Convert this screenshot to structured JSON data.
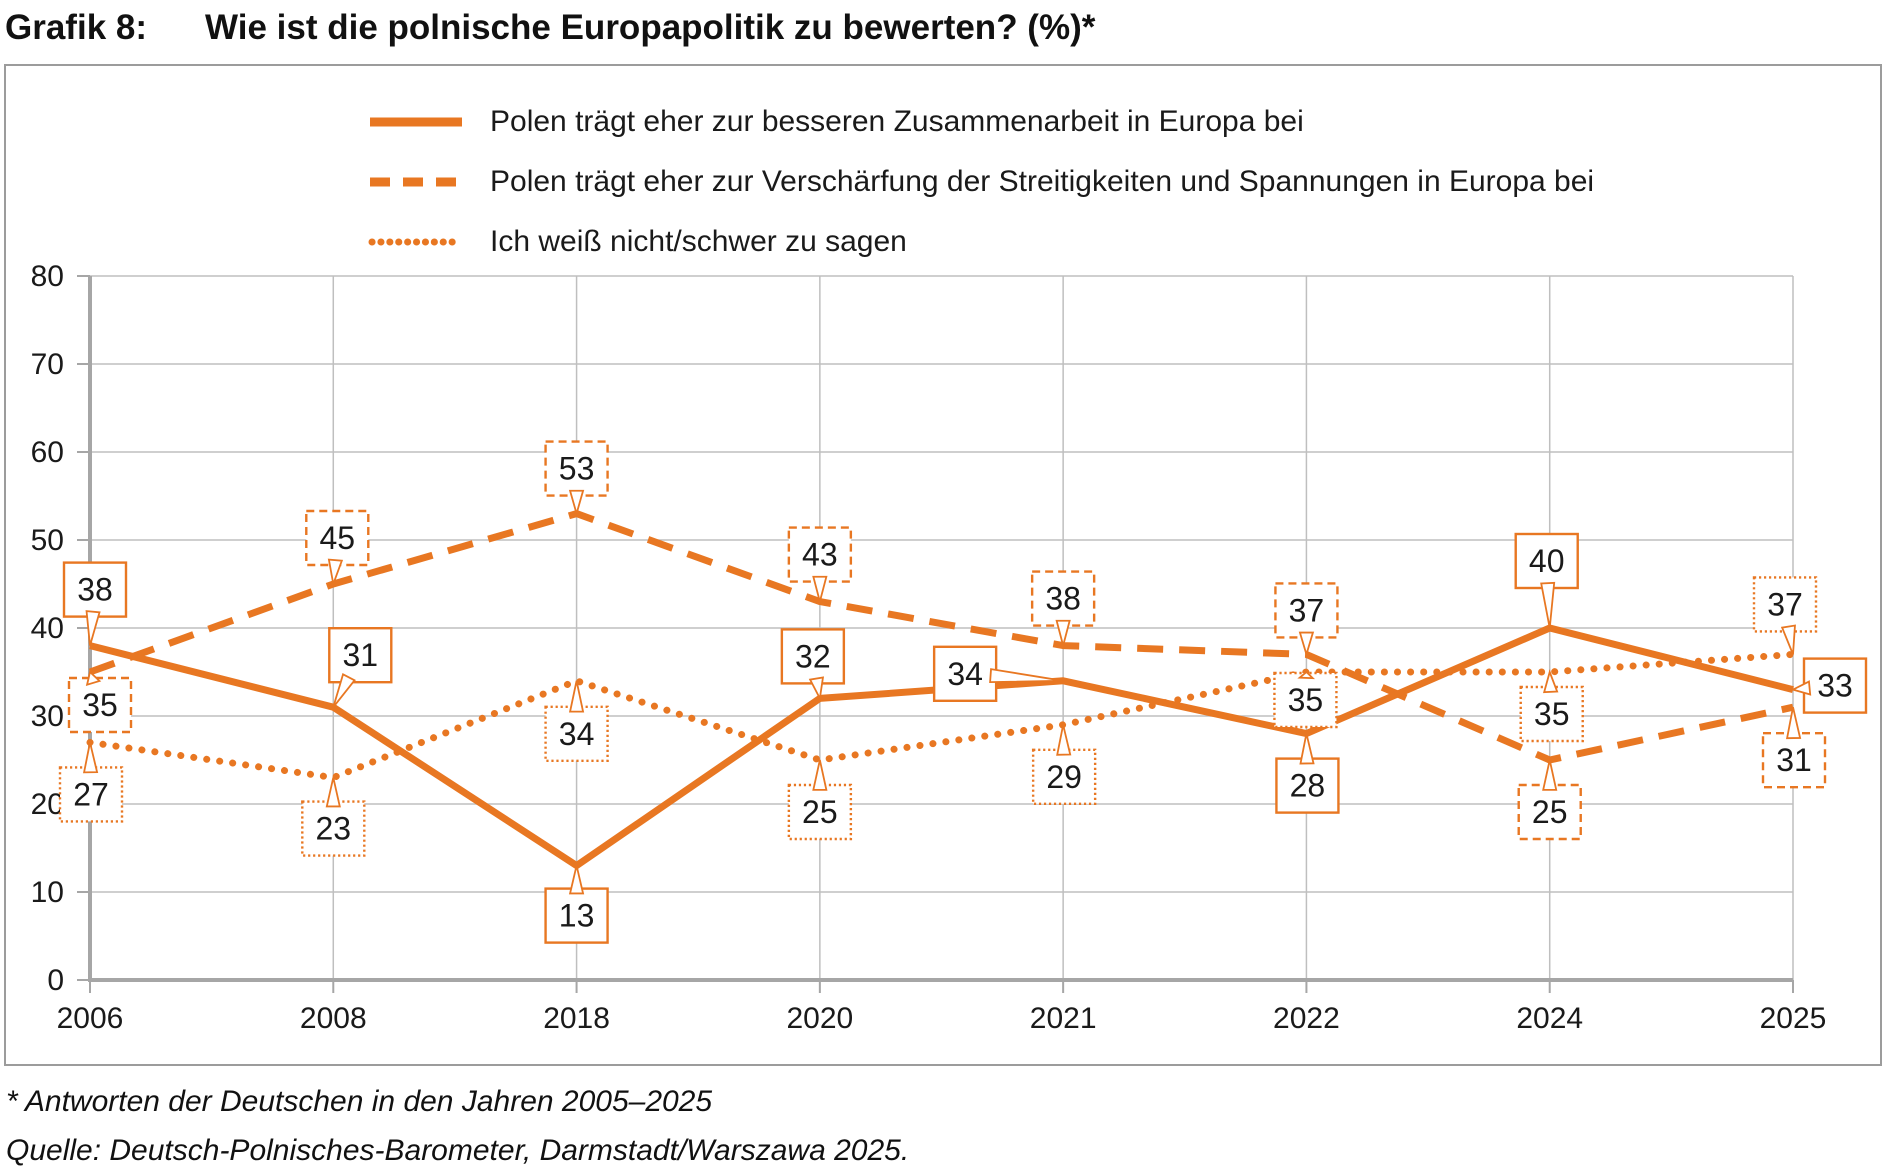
{
  "title": {
    "prefix": "Grafik 8:",
    "text": "Wie ist die polnische Europapolitik zu bewerten? (%)*"
  },
  "footnotes": {
    "note": "* Antworten der Deutschen in den Jahren 2005–2025",
    "source": "Quelle: Deutsch-Polnisches-Barometer, Darmstadt/Warszawa 2025."
  },
  "colors": {
    "accent": "#E87722",
    "grid": "#BFBFBF",
    "axis": "#A6A6A6",
    "text": "#1A1A1A"
  },
  "chart_data": {
    "type": "line",
    "title": "Grafik 8: Wie ist die polnische Europapolitik zu bewerten? (%)*",
    "categories": [
      "2006",
      "2008",
      "2018",
      "2020",
      "2021",
      "2022",
      "2024",
      "2025"
    ],
    "series": [
      {
        "name": "Polen trägt eher zur besseren Zusammenarbeit in Europa bei",
        "style": "solid",
        "values": [
          38,
          31,
          13,
          32,
          34,
          28,
          40,
          33
        ],
        "label_offsets": [
          [
            5,
            -56
          ],
          [
            27,
            -52
          ],
          [
            0,
            50
          ],
          [
            -7,
            -42
          ],
          [
            -98,
            -7
          ],
          [
            1,
            52
          ],
          [
            -3,
            -67
          ],
          [
            42,
            -4
          ]
        ]
      },
      {
        "name": "Polen trägt eher zur Verschärfung der Streitigkeiten und Spannungen in Europa bei",
        "style": "dashed",
        "values": [
          35,
          45,
          53,
          43,
          38,
          37,
          25,
          31
        ],
        "label_offsets": [
          [
            10,
            33
          ],
          [
            4,
            -46
          ],
          [
            0,
            -45
          ],
          [
            0,
            -47
          ],
          [
            0,
            -47
          ],
          [
            0,
            -44
          ],
          [
            0,
            52
          ],
          [
            1,
            53
          ]
        ]
      },
      {
        "name": "Ich weiß nicht/schwer zu sagen",
        "style": "dotted",
        "values": [
          27,
          23,
          34,
          25,
          29,
          35,
          35,
          37
        ],
        "label_offsets": [
          [
            1,
            52
          ],
          [
            0,
            51
          ],
          [
            0,
            53
          ],
          [
            0,
            52
          ],
          [
            1,
            52
          ],
          [
            -1,
            28
          ],
          [
            2,
            42
          ],
          [
            -8,
            -50
          ]
        ]
      }
    ],
    "ylim": [
      0,
      80
    ],
    "yticks": [
      0,
      10,
      20,
      30,
      40,
      50,
      60,
      70,
      80
    ],
    "grid": true,
    "legend_position": "top",
    "show_data_labels": true,
    "xlabel": "",
    "ylabel": ""
  }
}
